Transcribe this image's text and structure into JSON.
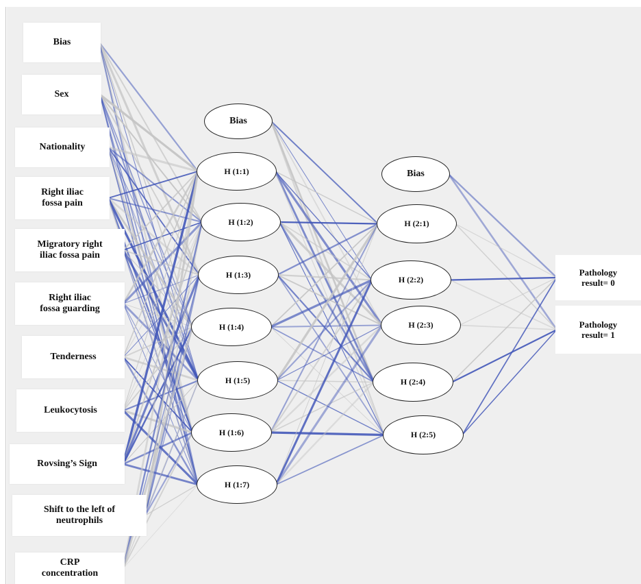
{
  "colors": {
    "positive": "#4156b8",
    "negative": "#c4c4c4",
    "node_border": "#222222",
    "background": "#efefef"
  },
  "input_layer": [
    "Bias",
    "Sex",
    "Nationality",
    "Right iliac\nfossa pain",
    "Migratory right\niliac fossa pain",
    "Right iliac\nfossa guarding",
    "Tenderness",
    "Leukocytosis",
    "Rovsing’s Sign",
    "Shift to the left of\nneutrophils",
    "CRP\nconcentration"
  ],
  "hidden_layer_1": [
    "Bias",
    "H (1:1)",
    "H (1:2)",
    "H (1:3)",
    "H (1:4)",
    "H (1:5)",
    "H (1:6)",
    "H (1:7)"
  ],
  "hidden_layer_2": [
    "Bias",
    "H (2:1)",
    "H (2:2)",
    "H (2:3)",
    "H (2:4)",
    "H (2:5)"
  ],
  "output_layer": [
    "Pathology\nresult= 0",
    "Pathology\nresult= 1"
  ]
}
